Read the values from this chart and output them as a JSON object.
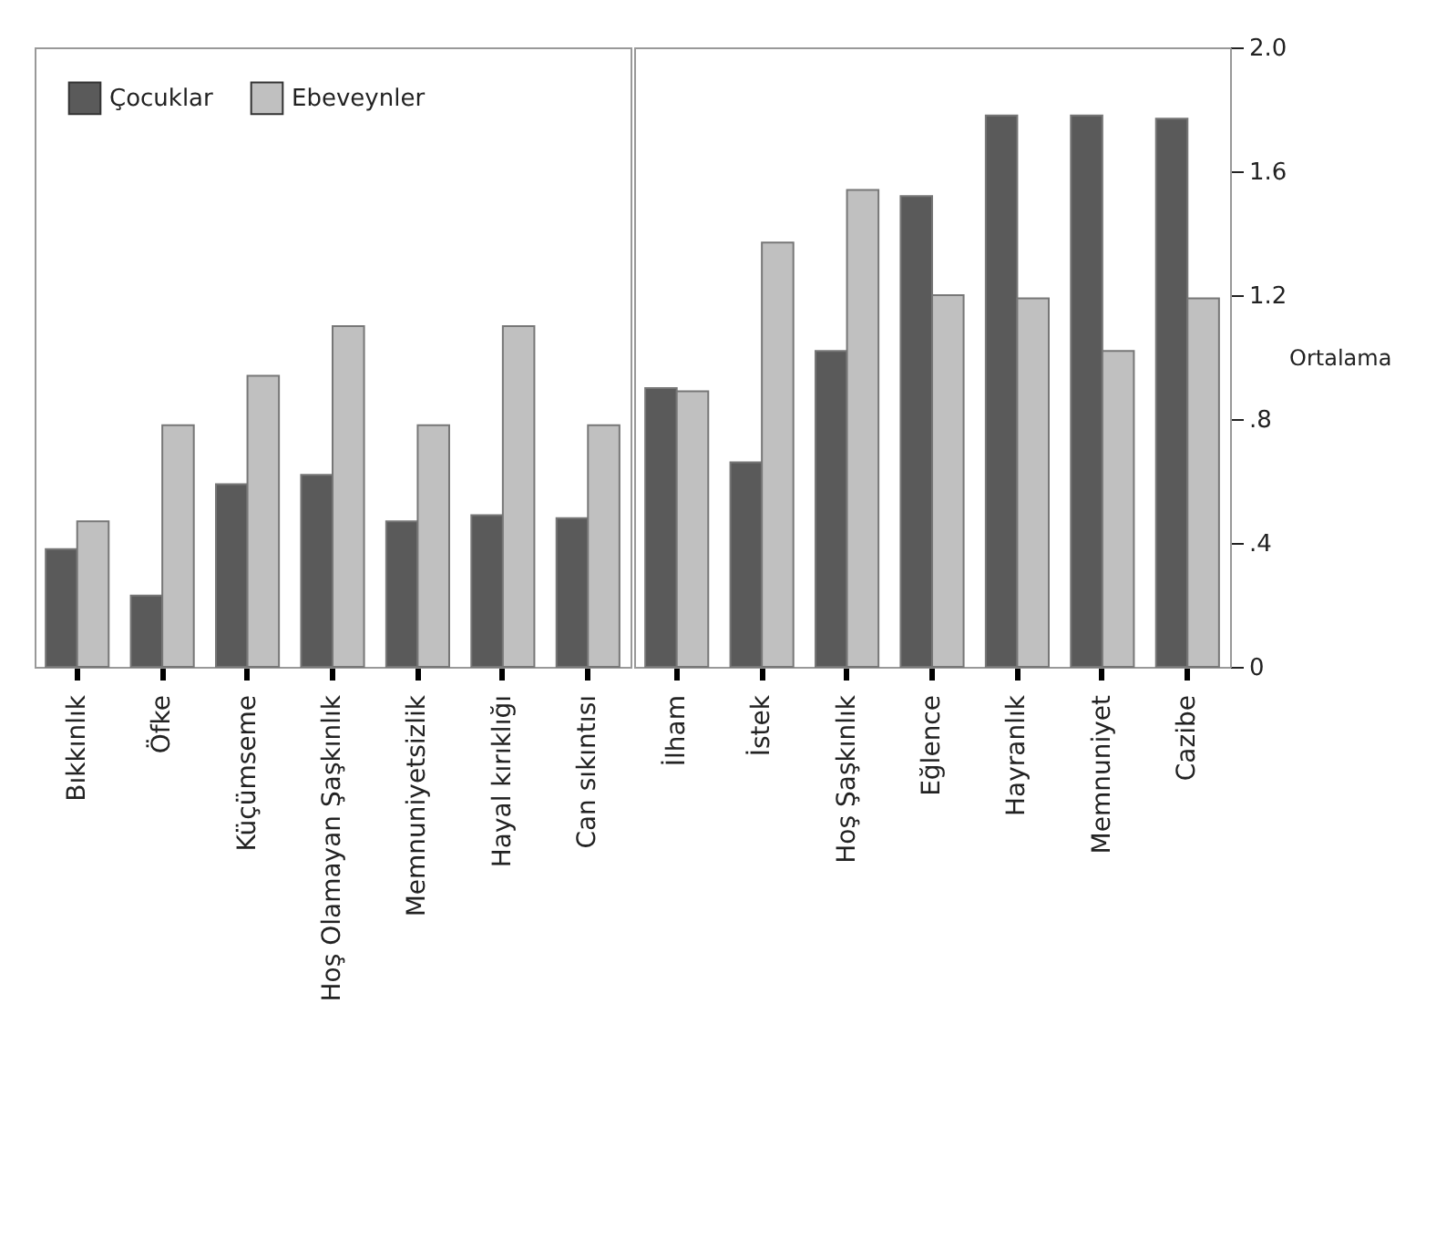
{
  "chart_data": [
    {
      "type": "bar",
      "categories": [
        "Bıkkınlık",
        "Öfke",
        "Küçümseme",
        "Hoş Olamayan Şaşkınlık",
        "Memnuniyetsizlik",
        "Hayal kırıklığı",
        "Can sıkıntısı"
      ],
      "series": [
        {
          "name": "Çocuklar",
          "color": "#5a5a5a",
          "values": [
            0.38,
            0.23,
            0.59,
            0.62,
            0.47,
            0.49,
            0.48
          ]
        },
        {
          "name": "Ebeveynler",
          "color": "#c0c0c0",
          "values": [
            0.47,
            0.78,
            0.94,
            1.1,
            0.78,
            1.1,
            0.78
          ]
        }
      ],
      "ylim": [
        0,
        2
      ],
      "tick_labels": "x",
      "legend": "top left"
    },
    {
      "type": "bar",
      "categories": [
        "İlham",
        "İstek",
        "Hoş Şaşkınlık",
        "Eğlence",
        "Hayranlık",
        "Memnuniyet",
        "Cazibe"
      ],
      "series": [
        {
          "color": "#5a5a5a",
          "values": [
            0.9,
            0.66,
            1.02,
            1.52,
            1.78,
            1.78,
            1.77
          ]
        },
        {
          "color": "#c0c0c0",
          "values": [
            0.89,
            1.37,
            1.54,
            1.2,
            1.19,
            1.02,
            1.19
          ]
        }
      ],
      "ylabel": "Ortalama",
      "ylim": [
        0,
        2
      ],
      "yticks": [
        0,
        {
          "value": 0.4,
          "label": ".4"
        },
        {
          "value": 0.8,
          "label": ".8"
        },
        1.2,
        1.6,
        {
          "value": 2,
          "label": "2.0"
        }
      ]
    }
  ]
}
